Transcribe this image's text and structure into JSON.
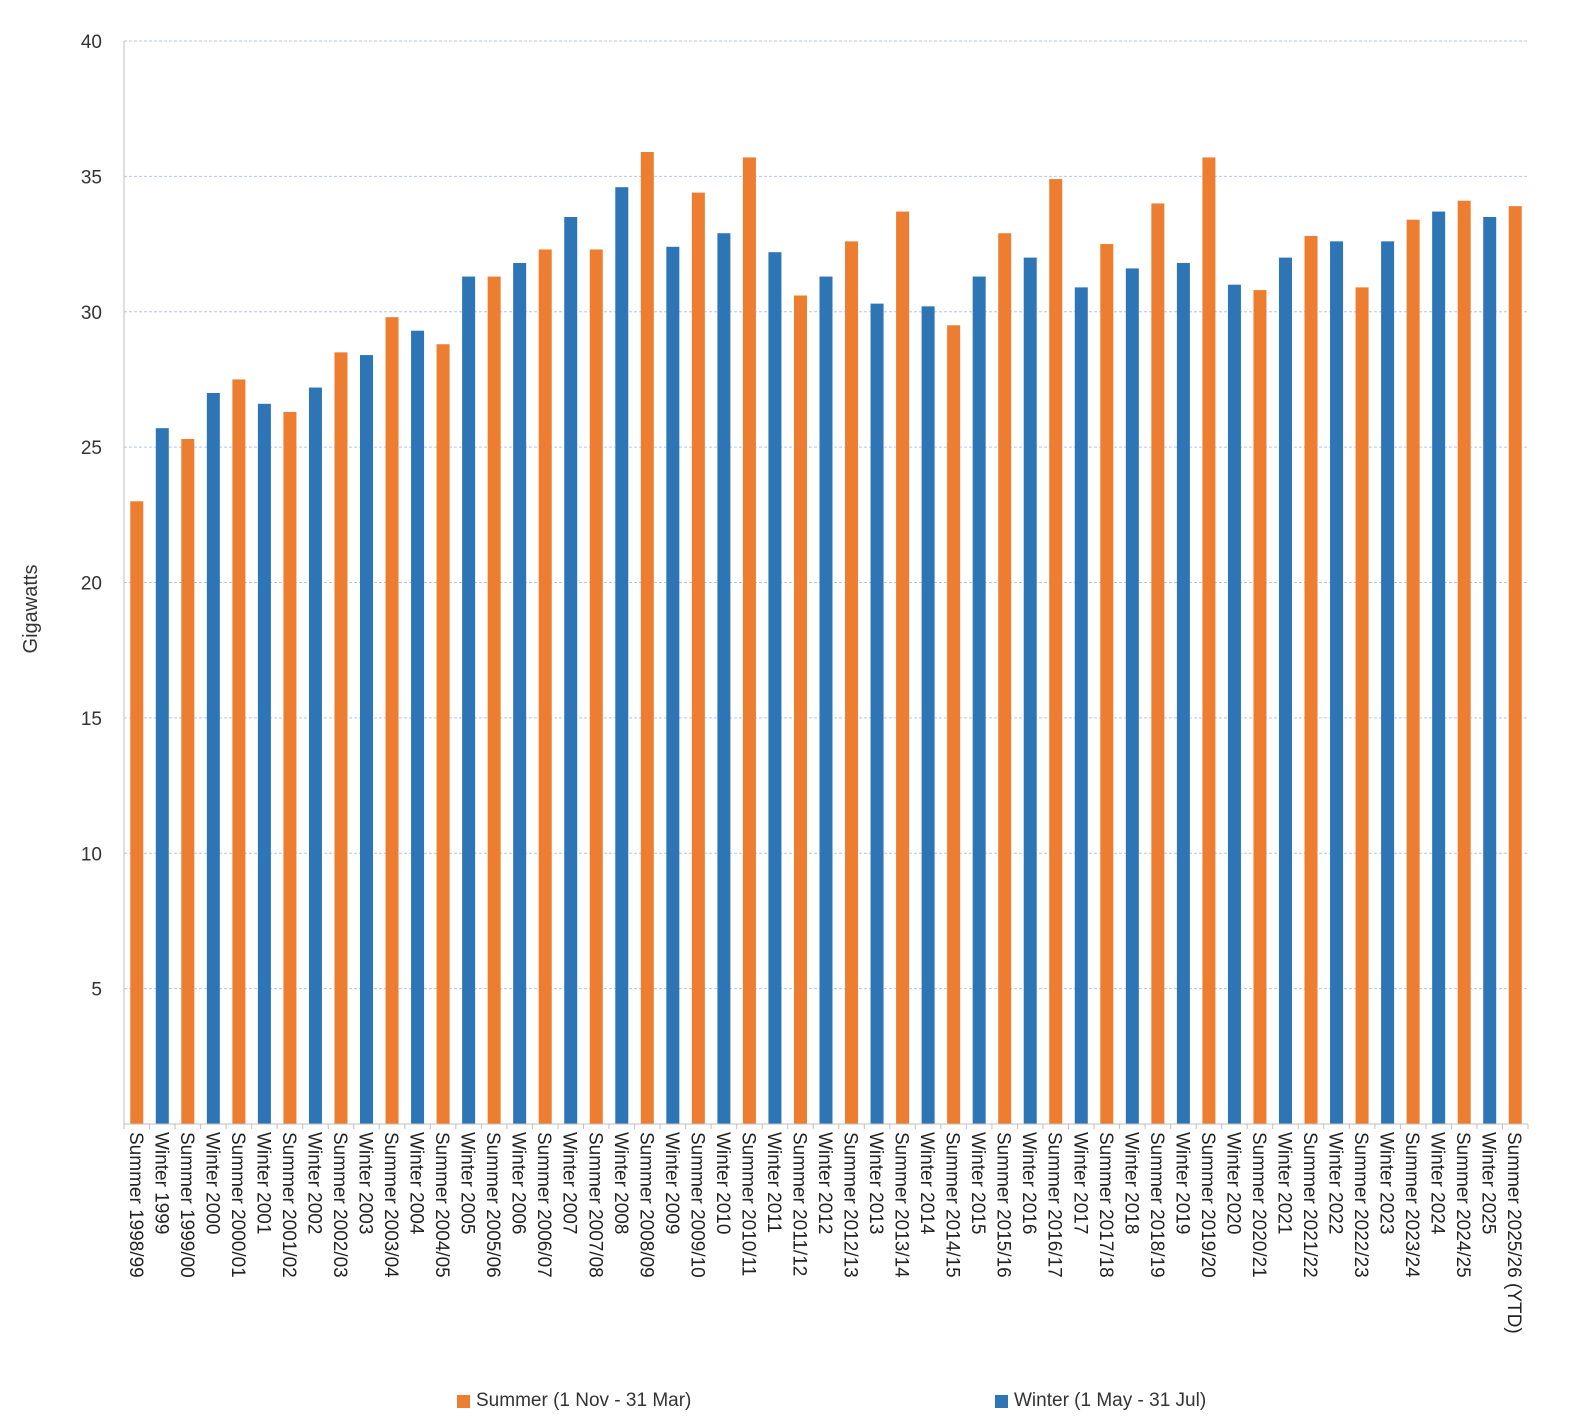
{
  "chart_data": {
    "type": "bar",
    "title": "",
    "xlabel": "",
    "ylabel": "Gigawatts",
    "ylim": [
      0,
      40
    ],
    "yticks": [
      5,
      10,
      15,
      20,
      25,
      30,
      35,
      40
    ],
    "grid": true,
    "legend_position": "bottom",
    "colors": {
      "summer": "#ED7D31",
      "winter": "#2E75B6",
      "grid": "#B4C7E7",
      "axis": "#BFBFBF"
    },
    "categories": [
      "Summer 1998/99",
      "Winter 1999",
      "Summer 1999/00",
      "Winter 2000",
      "Summer 2000/01",
      "Winter 2001",
      "Summer 2001/02",
      "Winter 2002",
      "Summer 2002/03",
      "Winter 2003",
      "Summer 2003/04",
      "Winter 2004",
      "Summer 2004/05",
      "Winter 2005",
      "Summer 2005/06",
      "Winter 2006",
      "Summer 2006/07",
      "Winter 2007",
      "Summer 2007/08",
      "Winter 2008",
      "Summer 2008/09",
      "Winter 2009",
      "Summer 2009/10",
      "Winter 2010",
      "Summer 2010/11",
      "Winter 2011",
      "Summer 2011/12",
      "Winter 2012",
      "Summer 2012/13",
      "Winter 2013",
      "Summer 2013/14",
      "Winter 2014",
      "Summer 2014/15",
      "Winter 2015",
      "Summer 2015/16",
      "Winter 2016",
      "Summer 2016/17",
      "Winter 2017",
      "Summer 2017/18",
      "Winter 2018",
      "Summer 2018/19",
      "Winter 2019",
      "Summer 2019/20",
      "Winter 2020",
      "Summer 2020/21",
      "Winter 2021",
      "Summer 2021/22",
      "Winter 2022",
      "Summer 2022/23",
      "Winter 2023",
      "Summer 2023/24",
      "Winter 2024",
      "Summer 2024/25",
      "Winter 2025",
      "Summer 2025/26 (YTD)"
    ],
    "values": [
      23.0,
      25.7,
      25.3,
      27.0,
      27.5,
      26.6,
      26.3,
      27.2,
      28.5,
      28.4,
      29.8,
      29.3,
      28.8,
      31.3,
      31.3,
      31.8,
      32.3,
      33.5,
      32.3,
      34.6,
      35.9,
      32.4,
      34.4,
      32.9,
      35.7,
      32.2,
      30.6,
      31.3,
      32.6,
      30.3,
      33.7,
      30.2,
      29.5,
      31.3,
      32.9,
      32.0,
      34.9,
      30.9,
      32.5,
      31.6,
      34.0,
      31.8,
      35.7,
      31.0,
      30.8,
      32.0,
      32.8,
      32.6,
      30.9,
      32.6,
      33.4,
      33.7,
      34.1,
      33.5,
      33.9
    ],
    "series": [
      {
        "name": "Summer (1 Nov - 31 Mar)",
        "key": "summer"
      },
      {
        "name": "Winter (1 May - 31 Jul)",
        "key": "winter"
      }
    ]
  }
}
